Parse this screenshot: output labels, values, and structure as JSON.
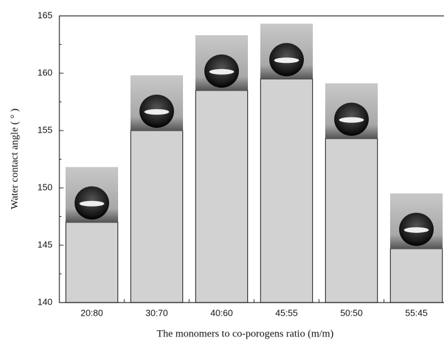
{
  "chart_data": {
    "type": "bar",
    "x_label": "The monomers to co-porogens ratio (m/m)",
    "y_label": "Water contact angle ( ° )",
    "categories": [
      "20:80",
      "30:70",
      "40:60",
      "45:55",
      "50:50",
      "55:45"
    ],
    "values": [
      147,
      155,
      158.5,
      159.5,
      154.3,
      144.7
    ],
    "color": "#d2d2d2",
    "ylim": [
      140,
      165
    ],
    "yticks": [
      140,
      145,
      150,
      155,
      160,
      165
    ],
    "grid": false
  }
}
